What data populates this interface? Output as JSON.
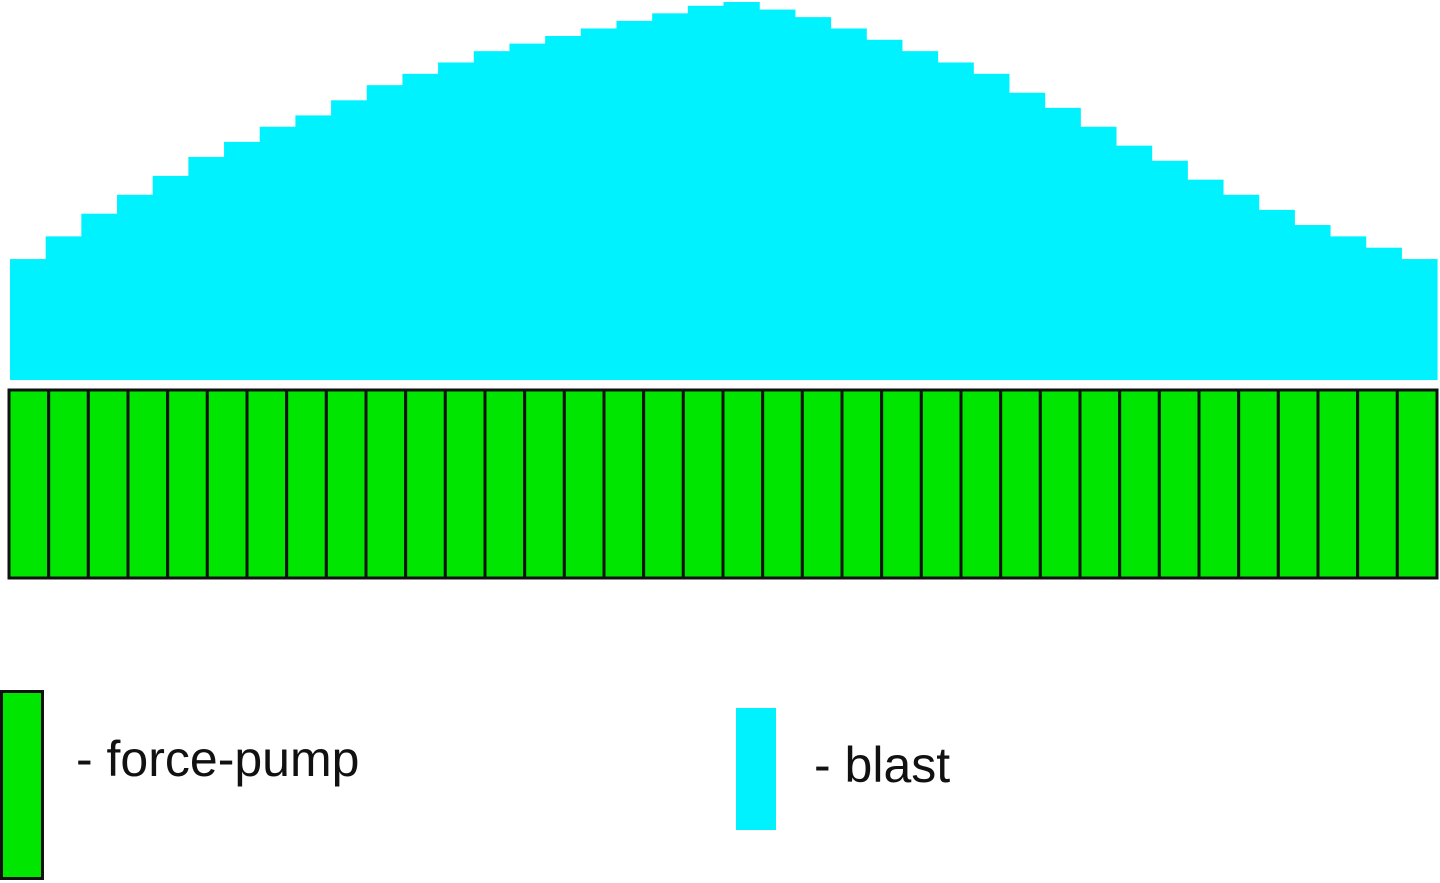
{
  "colors": {
    "blast": "#00F2FF",
    "force_pump": "#00E600",
    "outline": "#111111"
  },
  "diagram": {
    "blast_profile_relative": [
      0.32,
      0.38,
      0.44,
      0.49,
      0.54,
      0.59,
      0.63,
      0.67,
      0.7,
      0.74,
      0.78,
      0.81,
      0.84,
      0.87,
      0.89,
      0.91,
      0.93,
      0.95,
      0.97,
      0.99,
      1.0,
      0.98,
      0.96,
      0.93,
      0.9,
      0.87,
      0.84,
      0.81,
      0.76,
      0.72,
      0.67,
      0.62,
      0.58,
      0.53,
      0.49,
      0.45,
      0.41,
      0.38,
      0.35,
      0.32
    ],
    "force_pump_count": 36
  },
  "legend": {
    "force_pump": {
      "label": "- force-pump",
      "icon": "green-rectangle"
    },
    "blast": {
      "label": "- blast",
      "icon": "cyan-rectangle"
    }
  }
}
